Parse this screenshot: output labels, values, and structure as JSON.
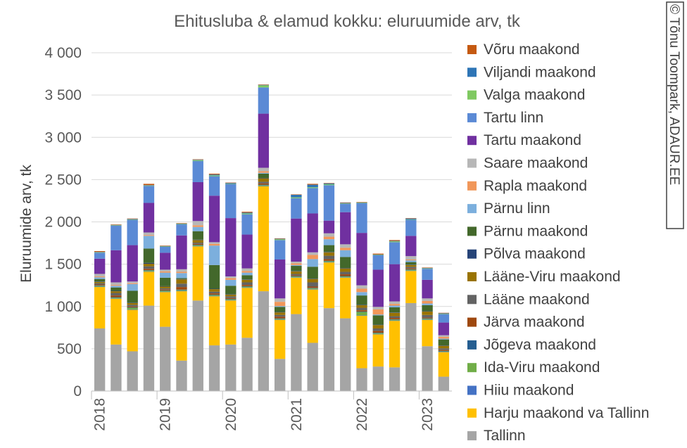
{
  "chart_data": {
    "type": "bar",
    "stacked": true,
    "title": "Ehitusluba & elamud kokku: eluruumide arv, tk",
    "ylabel": "Eluruumide arv, tk",
    "xlabel": "",
    "ylim": [
      0,
      4000
    ],
    "yticks": [
      0,
      500,
      1000,
      1500,
      2000,
      2500,
      3000,
      3500,
      4000
    ],
    "ytick_labels": [
      "0",
      "500",
      "1 000",
      "1 500",
      "2 000",
      "2 500",
      "3 000",
      "3 500",
      "4 000"
    ],
    "x_year_labels": [
      "2018",
      "2019",
      "2020",
      "2021",
      "2022",
      "2023"
    ],
    "grid": true,
    "legend_position": "right",
    "categories": [
      "2018 Q1",
      "2018 Q2",
      "2018 Q3",
      "2018 Q4",
      "2019 Q1",
      "2019 Q2",
      "2019 Q3",
      "2019 Q4",
      "2020 Q1",
      "2020 Q2",
      "2020 Q3",
      "2020 Q4",
      "2021 Q1",
      "2021 Q2",
      "2021 Q3",
      "2021 Q4",
      "2022 Q1",
      "2022 Q2",
      "2022 Q3",
      "2022 Q4",
      "2023 Q1",
      "2023 Q2"
    ],
    "series": [
      {
        "name": "Tallinn",
        "color": "#a5a5a5",
        "values": [
          740,
          550,
          470,
          1010,
          760,
          360,
          1070,
          540,
          550,
          630,
          1180,
          380,
          910,
          570,
          980,
          860,
          270,
          290,
          280,
          1040,
          530,
          170
        ]
      },
      {
        "name": "Harju maakond va Tallinn",
        "color": "#ffc000",
        "values": [
          490,
          540,
          490,
          400,
          410,
          820,
          640,
          580,
          520,
          590,
          1240,
          460,
          430,
          630,
          540,
          480,
          620,
          380,
          550,
          380,
          310,
          290
        ]
      },
      {
        "name": "Hiiu maakond",
        "color": "#4472c4",
        "values": [
          5,
          5,
          5,
          5,
          5,
          5,
          5,
          5,
          5,
          5,
          5,
          5,
          5,
          5,
          5,
          5,
          5,
          5,
          5,
          5,
          5,
          5
        ]
      },
      {
        "name": "Ida-Viru maakond",
        "color": "#70ad47",
        "values": [
          10,
          10,
          20,
          10,
          10,
          10,
          10,
          10,
          10,
          10,
          10,
          10,
          10,
          10,
          10,
          10,
          40,
          10,
          10,
          10,
          10,
          5
        ]
      },
      {
        "name": "Jõgeva maakond",
        "color": "#255e91",
        "values": [
          5,
          5,
          5,
          5,
          5,
          5,
          5,
          5,
          5,
          5,
          5,
          5,
          5,
          5,
          5,
          5,
          5,
          5,
          5,
          5,
          5,
          5
        ]
      },
      {
        "name": "Järva maakond",
        "color": "#9e480e",
        "values": [
          10,
          20,
          10,
          15,
          10,
          30,
          10,
          15,
          10,
          15,
          15,
          20,
          10,
          15,
          20,
          20,
          15,
          20,
          15,
          10,
          10,
          10
        ]
      },
      {
        "name": "Lääne maakond",
        "color": "#636363",
        "values": [
          15,
          30,
          20,
          30,
          15,
          40,
          15,
          20,
          20,
          30,
          20,
          20,
          15,
          50,
          40,
          30,
          30,
          30,
          20,
          20,
          30,
          20
        ]
      },
      {
        "name": "Lääne-Viru maakond",
        "color": "#997300",
        "values": [
          15,
          20,
          20,
          30,
          20,
          50,
          30,
          30,
          20,
          30,
          40,
          30,
          30,
          40,
          40,
          40,
          30,
          40,
          40,
          20,
          40,
          30
        ]
      },
      {
        "name": "Põlva maakond",
        "color": "#264478",
        "values": [
          5,
          5,
          5,
          10,
          5,
          5,
          5,
          5,
          5,
          5,
          5,
          5,
          5,
          5,
          5,
          5,
          5,
          5,
          5,
          5,
          5,
          5
        ]
      },
      {
        "name": "Pärnu maakond",
        "color": "#43682b",
        "values": [
          30,
          40,
          140,
          170,
          100,
          10,
          100,
          280,
          100,
          50,
          50,
          60,
          60,
          140,
          80,
          130,
          110,
          110,
          60,
          30,
          70,
          70
        ]
      },
      {
        "name": "Pärnu linn",
        "color": "#7cafdd",
        "values": [
          20,
          20,
          80,
          150,
          60,
          60,
          50,
          230,
          70,
          30,
          10,
          10,
          10,
          90,
          70,
          80,
          40,
          10,
          20,
          20,
          20,
          10
        ]
      },
      {
        "name": "Rapla maakond",
        "color": "#f1975a",
        "values": [
          10,
          10,
          10,
          10,
          15,
          15,
          20,
          20,
          20,
          20,
          20,
          50,
          20,
          50,
          30,
          30,
          40,
          60,
          20,
          10,
          30,
          20
        ]
      },
      {
        "name": "Saare maakond",
        "color": "#b7b7b7",
        "values": [
          30,
          30,
          20,
          30,
          20,
          30,
          50,
          20,
          20,
          30,
          40,
          40,
          20,
          30,
          40,
          40,
          40,
          30,
          30,
          40,
          30,
          20
        ]
      },
      {
        "name": "Tartu maakond",
        "color": "#7030a0",
        "values": [
          180,
          380,
          430,
          350,
          200,
          400,
          460,
          550,
          690,
          400,
          640,
          460,
          510,
          460,
          150,
          380,
          620,
          440,
          440,
          240,
          220,
          150
        ]
      },
      {
        "name": "Tartu linn",
        "color": "#5b8ad5",
        "values": [
          70,
          290,
          300,
          200,
          70,
          130,
          250,
          230,
          400,
          240,
          310,
          230,
          240,
          300,
          420,
          100,
          350,
          170,
          260,
          190,
          130,
          100
        ]
      },
      {
        "name": "Valga maakond",
        "color": "#7fc961",
        "values": [
          5,
          5,
          5,
          5,
          5,
          5,
          10,
          10,
          5,
          10,
          25,
          10,
          10,
          10,
          10,
          5,
          5,
          5,
          10,
          5,
          5,
          5
        ]
      },
      {
        "name": "Viljandi maakond",
        "color": "#2e75b6",
        "values": [
          5,
          5,
          5,
          5,
          5,
          5,
          5,
          10,
          10,
          10,
          5,
          5,
          30,
          30,
          10,
          5,
          5,
          5,
          5,
          10,
          5,
          5
        ]
      },
      {
        "name": "Võru maakond",
        "color": "#c55a11",
        "values": [
          10,
          5,
          5,
          15,
          5,
          5,
          5,
          10,
          5,
          10,
          5,
          5,
          5,
          10,
          5,
          5,
          5,
          10,
          10,
          5,
          5,
          5
        ]
      }
    ]
  },
  "watermark": "© Tõnu Toompark, ADAUR.EE"
}
